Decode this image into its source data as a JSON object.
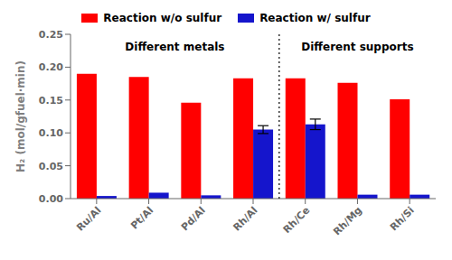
{
  "chart_data": {
    "type": "bar",
    "categories": [
      "Ru/Al",
      "Pt/Al",
      "Pd/Al",
      "Rh/Al",
      "Rh/Ce",
      "Rh/Mg",
      "Rh/Si"
    ],
    "series": [
      {
        "name": "Reaction w/o sulfur",
        "color": "#FF0000",
        "values": [
          0.19,
          0.185,
          0.146,
          0.183,
          0.183,
          0.176,
          0.151
        ]
      },
      {
        "name": "Reaction w/ sulfur",
        "color": "#1515CC",
        "values": [
          0.004,
          0.009,
          0.005,
          0.105,
          0.113,
          0.006,
          0.006
        ],
        "errors": [
          0.0,
          0.0,
          0.0,
          0.006,
          0.008,
          0.0,
          0.0
        ]
      }
    ],
    "ylabel": "H₂ (mol/gfuel·min)",
    "ylim": [
      0.0,
      0.25
    ],
    "yticks": [
      {
        "value": 0.0,
        "label": "0.00"
      },
      0.05,
      {
        "value": 0.1,
        "label": "0.10"
      },
      0.15,
      {
        "value": 0.2,
        "label": "0.20"
      },
      0.25
    ],
    "annotations": [
      {
        "text": "Different metals",
        "x": 1.5,
        "y": 0.23
      },
      {
        "text": "Different supports",
        "x": 5.0,
        "y": 0.23
      }
    ],
    "vlines": [
      3.5
    ],
    "grid": false
  }
}
